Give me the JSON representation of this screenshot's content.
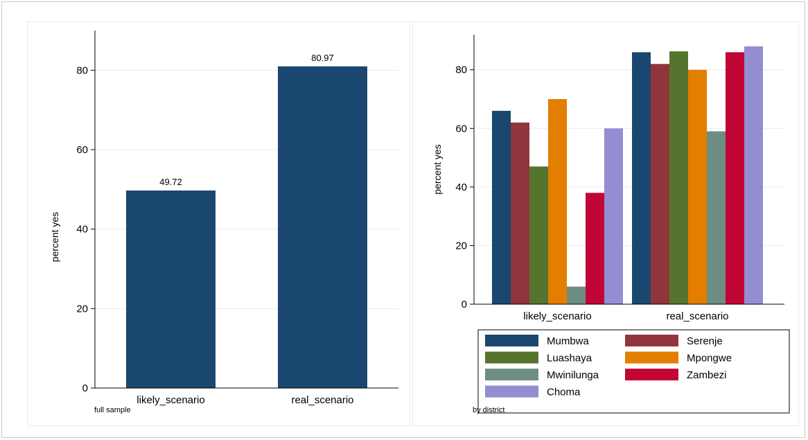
{
  "charts": [
    {
      "type": "bar",
      "categories": [
        "likely_scenario",
        "real_scenario"
      ],
      "values": [
        49.72,
        80.97
      ],
      "value_labels": [
        "49.72",
        "80.97"
      ],
      "ylabel": "percent yes",
      "note": "full sample",
      "ylim": [
        0,
        90
      ],
      "yticks": [
        0,
        20,
        40,
        60,
        80
      ],
      "grid": true,
      "color": "#1a476f"
    },
    {
      "type": "bar",
      "categories": [
        "likely_scenario",
        "real_scenario"
      ],
      "series": [
        {
          "name": "Mumbwa",
          "color": "#1a476f",
          "values": [
            66,
            86
          ]
        },
        {
          "name": "Serenje",
          "color": "#90353b",
          "values": [
            62,
            82
          ]
        },
        {
          "name": "Luashaya",
          "color": "#55752f",
          "values": [
            47,
            86.3
          ]
        },
        {
          "name": "Mpongwe",
          "color": "#e37e00",
          "values": [
            70,
            80
          ]
        },
        {
          "name": "Mwinilunga",
          "color": "#6e8e84",
          "values": [
            6,
            59
          ]
        },
        {
          "name": "Zambezi",
          "color": "#c10534",
          "values": [
            38,
            86
          ]
        },
        {
          "name": "Choma",
          "color": "#938dd2",
          "values": [
            60,
            88
          ]
        }
      ],
      "ylabel": "percent yes",
      "note": "by district",
      "ylim": [
        0,
        92
      ],
      "yticks": [
        0,
        20,
        40,
        60,
        80
      ],
      "grid": true,
      "legend_position": "bottom"
    }
  ]
}
